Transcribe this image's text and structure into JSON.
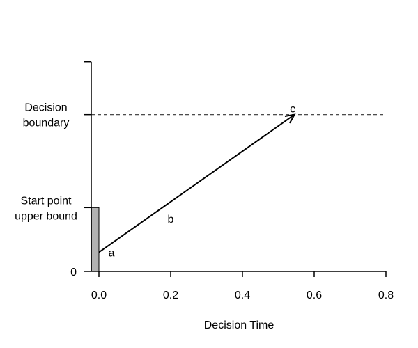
{
  "chart_data": {
    "type": "diagram",
    "xlabel": "Decision Time",
    "xlim": [
      -0.02,
      0.8
    ],
    "ylim": [
      0,
      1.15
    ],
    "x_ticks": [
      0.0,
      0.2,
      0.4,
      0.6,
      0.8
    ],
    "x_tick_labels": [
      "0.0",
      "0.2",
      "0.4",
      "0.6",
      "0.8"
    ],
    "y_tick_values": [
      0,
      0.35,
      0.86,
      1.15
    ],
    "y_tick_labels": [
      {
        "lines": [
          "0"
        ]
      },
      {
        "lines": [
          "Start point",
          "upper bound"
        ]
      },
      {
        "lines": [
          "Decision",
          "boundary"
        ]
      }
    ],
    "decision_boundary": 0.86,
    "start_point_bar": {
      "x_from": -0.02,
      "x_to": 0.0,
      "top": 0.35,
      "color": "#b3b3b3"
    },
    "accumulation_arrow": {
      "from": [
        0.0,
        0.105
      ],
      "to": [
        0.545,
        0.86
      ]
    },
    "annotations": [
      {
        "text": "a",
        "x": 0.035,
        "y": 0.105
      },
      {
        "text": "b",
        "x": 0.2,
        "y": 0.29
      },
      {
        "text": "c",
        "x": 0.54,
        "y": 0.895
      }
    ],
    "colors": {
      "line": "#000000",
      "bar": "#b3b3b3",
      "dashed": "#333333"
    },
    "grid": false,
    "legend": "none"
  }
}
